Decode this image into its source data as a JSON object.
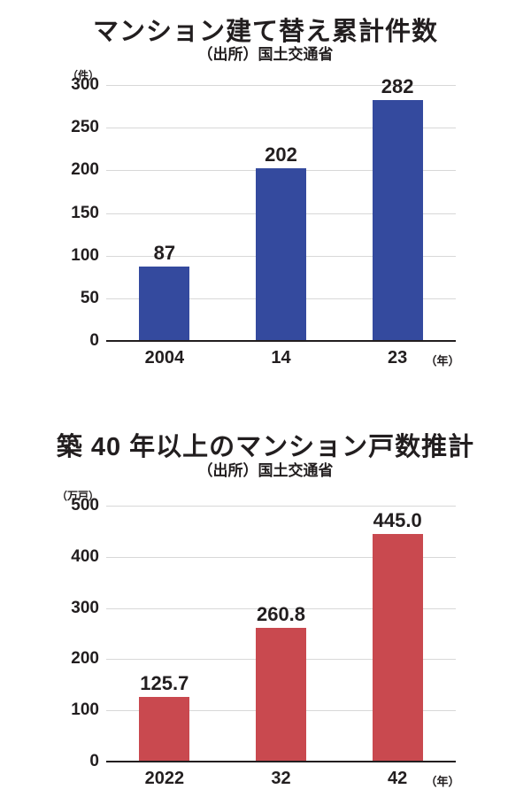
{
  "page": {
    "background": "#ffffff",
    "text_color": "#221e1f",
    "gridline_color": "#d8d8d8",
    "axis_color": "#221e1f"
  },
  "chart_data": [
    {
      "type": "bar",
      "title": "マンション建て替え累計件数",
      "subtitle": "（出所）国土交通省",
      "y_unit": "（件）",
      "x_unit": "（年）",
      "categories": [
        "2004",
        "14",
        "23"
      ],
      "values": [
        87,
        202,
        282
      ],
      "value_labels": [
        "87",
        "202",
        "282"
      ],
      "yticks": [
        0,
        50,
        100,
        150,
        200,
        250,
        300
      ],
      "ylim": [
        0,
        300
      ],
      "bar_color": "#344a9e",
      "grid": true,
      "legend": "none"
    },
    {
      "type": "bar",
      "title": "築 40 年以上のマンション戸数推計",
      "subtitle": "（出所）国土交通省",
      "y_unit": "（万戸）",
      "x_unit": "（年）",
      "categories": [
        "2022",
        "32",
        "42"
      ],
      "values": [
        125.7,
        260.8,
        445.0
      ],
      "value_labels": [
        "125.7",
        "260.8",
        "445.0"
      ],
      "yticks": [
        0,
        100,
        200,
        300,
        400,
        500
      ],
      "ylim": [
        0,
        500
      ],
      "bar_color": "#c9494f",
      "grid": true,
      "legend": "none"
    }
  ]
}
